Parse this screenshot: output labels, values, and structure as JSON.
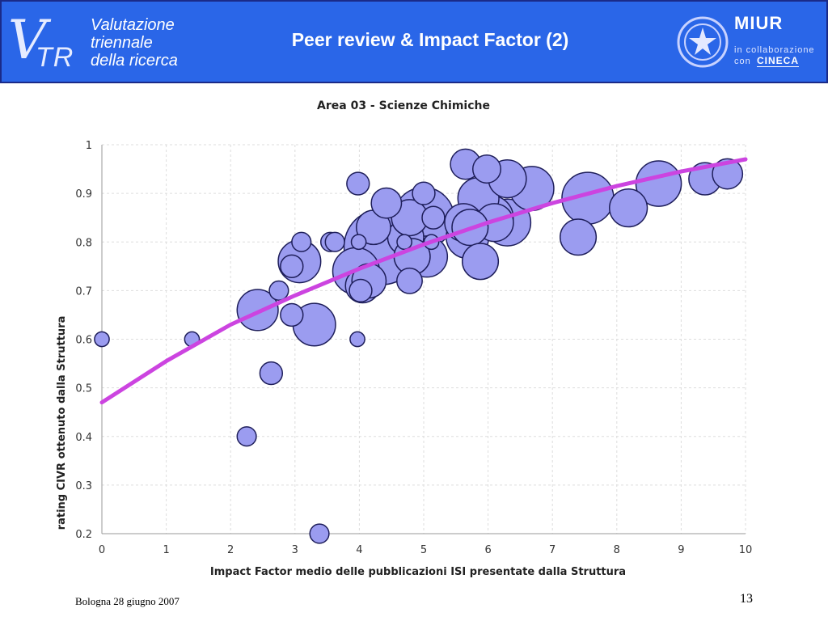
{
  "header": {
    "logo_line1": "Valutazione",
    "logo_line2": "triennale",
    "logo_line3": "della ricerca",
    "logo_v": "V",
    "logo_tr": "TR",
    "title": "Peer review & Impact Factor (2)",
    "miur": "MIUR",
    "miur_sub1": "in collaborazione",
    "miur_sub2": "con",
    "cineca": "CINECA"
  },
  "footer": {
    "location_date": "Bologna 28 giugno 2007",
    "page_number": "13"
  },
  "colors": {
    "header_bg": "#2a66e8",
    "bubble_fill": "#9b9cf0",
    "bubble_stroke": "#1e1e5a",
    "trend_line": "#cc44e0",
    "grid": "#dddddd"
  },
  "chart_data": {
    "type": "scatter",
    "subtype": "bubble",
    "title": "Area 03 - Scienze Chimiche",
    "xlabel": "Impact Factor medio delle pubblicazioni ISI presentate dalla Struttura",
    "ylabel": "rating CIVR ottenuto dalla Struttura",
    "xlim": [
      0,
      10
    ],
    "ylim": [
      0.2,
      1
    ],
    "x_ticks": [
      "0",
      "1",
      "2",
      "3",
      "4",
      "5",
      "6",
      "7",
      "8",
      "9",
      "10"
    ],
    "y_ticks": [
      "0.2",
      "0.3",
      "0.4",
      "0.5",
      "0.6",
      "0.7",
      "0.8",
      "0.9",
      "1"
    ],
    "grid": "dashed",
    "legend": "none",
    "points": [
      {
        "x": 0.0,
        "y": 0.6,
        "size": 1
      },
      {
        "x": 1.4,
        "y": 0.6,
        "size": 1
      },
      {
        "x": 2.25,
        "y": 0.4,
        "size": 2
      },
      {
        "x": 2.42,
        "y": 0.66,
        "size": 12
      },
      {
        "x": 2.63,
        "y": 0.53,
        "size": 3
      },
      {
        "x": 2.75,
        "y": 0.7,
        "size": 2
      },
      {
        "x": 2.95,
        "y": 0.65,
        "size": 3
      },
      {
        "x": 2.95,
        "y": 0.75,
        "size": 3
      },
      {
        "x": 3.1,
        "y": 0.8,
        "size": 2
      },
      {
        "x": 3.07,
        "y": 0.76,
        "size": 13
      },
      {
        "x": 3.3,
        "y": 0.63,
        "size": 13
      },
      {
        "x": 3.38,
        "y": 0.2,
        "size": 2
      },
      {
        "x": 3.55,
        "y": 0.8,
        "size": 2
      },
      {
        "x": 3.62,
        "y": 0.8,
        "size": 2
      },
      {
        "x": 3.97,
        "y": 0.6,
        "size": 1
      },
      {
        "x": 3.98,
        "y": 0.92,
        "size": 3
      },
      {
        "x": 3.99,
        "y": 0.8,
        "size": 1
      },
      {
        "x": 3.95,
        "y": 0.74,
        "size": 16
      },
      {
        "x": 4.05,
        "y": 0.71,
        "size": 8
      },
      {
        "x": 4.02,
        "y": 0.7,
        "size": 3
      },
      {
        "x": 4.15,
        "y": 0.72,
        "size": 8
      },
      {
        "x": 4.22,
        "y": 0.83,
        "size": 8
      },
      {
        "x": 4.35,
        "y": 0.79,
        "size": 45
      },
      {
        "x": 4.42,
        "y": 0.88,
        "size": 6
      },
      {
        "x": 4.7,
        "y": 0.8,
        "size": 1
      },
      {
        "x": 4.72,
        "y": 0.81,
        "size": 9
      },
      {
        "x": 4.78,
        "y": 0.72,
        "size": 4
      },
      {
        "x": 4.78,
        "y": 0.85,
        "size": 9
      },
      {
        "x": 4.82,
        "y": 0.77,
        "size": 9
      },
      {
        "x": 5.0,
        "y": 0.85,
        "size": 28
      },
      {
        "x": 5.05,
        "y": 0.77,
        "size": 12
      },
      {
        "x": 5.0,
        "y": 0.9,
        "size": 3
      },
      {
        "x": 5.12,
        "y": 0.8,
        "size": 1
      },
      {
        "x": 5.15,
        "y": 0.85,
        "size": 3
      },
      {
        "x": 5.65,
        "y": 0.96,
        "size": 6
      },
      {
        "x": 5.62,
        "y": 0.84,
        "size": 10
      },
      {
        "x": 5.68,
        "y": 0.81,
        "size": 13
      },
      {
        "x": 5.72,
        "y": 0.83,
        "size": 9
      },
      {
        "x": 5.85,
        "y": 0.89,
        "size": 12
      },
      {
        "x": 5.88,
        "y": 0.76,
        "size": 9
      },
      {
        "x": 5.98,
        "y": 0.95,
        "size": 5
      },
      {
        "x": 6.05,
        "y": 0.85,
        "size": 14
      },
      {
        "x": 6.1,
        "y": 0.84,
        "size": 10
      },
      {
        "x": 6.3,
        "y": 0.93,
        "size": 10
      },
      {
        "x": 6.3,
        "y": 0.84,
        "size": 16
      },
      {
        "x": 6.68,
        "y": 0.91,
        "size": 14
      },
      {
        "x": 7.4,
        "y": 0.81,
        "size": 9
      },
      {
        "x": 7.55,
        "y": 0.89,
        "size": 20
      },
      {
        "x": 8.18,
        "y": 0.87,
        "size": 10
      },
      {
        "x": 8.65,
        "y": 0.92,
        "size": 15
      },
      {
        "x": 9.37,
        "y": 0.93,
        "size": 7
      },
      {
        "x": 9.72,
        "y": 0.94,
        "size": 6
      }
    ],
    "trend_line": {
      "x": [
        0,
        1,
        2,
        3,
        4,
        5,
        6,
        7,
        8,
        9,
        10
      ],
      "y": [
        0.47,
        0.555,
        0.63,
        0.69,
        0.745,
        0.795,
        0.84,
        0.88,
        0.915,
        0.945,
        0.97
      ]
    }
  }
}
